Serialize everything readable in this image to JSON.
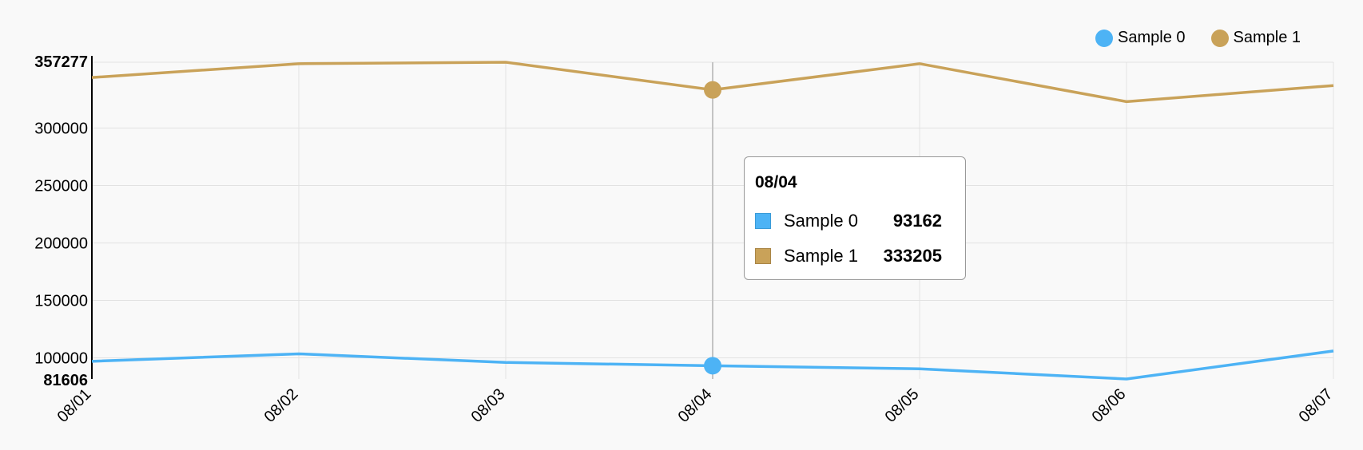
{
  "chart_data": {
    "type": "line",
    "categories": [
      "08/01",
      "08/02",
      "08/03",
      "08/04",
      "08/05",
      "08/06",
      "08/07"
    ],
    "series": [
      {
        "name": "Sample 0",
        "color": "#4db3f5",
        "values": [
          97000,
          103500,
          96000,
          93162,
          90500,
          81606,
          106000
        ]
      },
      {
        "name": "Sample 1",
        "color": "#c9a259",
        "values": [
          344000,
          356000,
          357277,
          333205,
          356000,
          323000,
          337000
        ]
      }
    ],
    "yticks": [
      "100000",
      "150000",
      "200000",
      "250000",
      "300000"
    ],
    "ylim": [
      81606,
      357277
    ],
    "ymin_label": "81606",
    "ymax_label": "357277",
    "grid": true,
    "legend_position": "top-right",
    "highlight_index": 3
  },
  "tooltip": {
    "title": "08/04",
    "rows": [
      {
        "name": "Sample 0",
        "value": "93162",
        "color": "#4db3f5"
      },
      {
        "name": "Sample 1",
        "value": "333205",
        "color": "#c9a259"
      }
    ]
  }
}
